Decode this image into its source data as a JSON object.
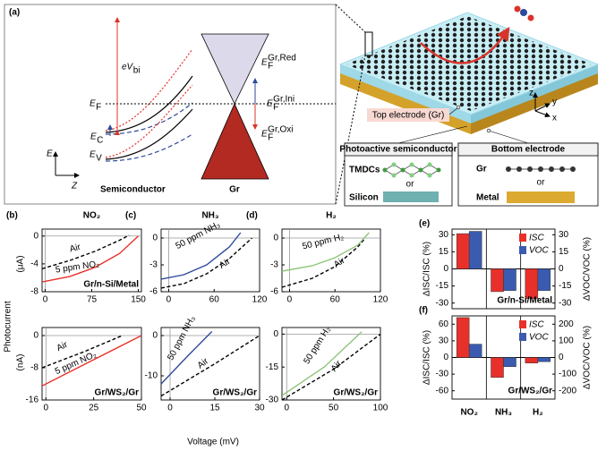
{
  "diagram": {
    "label": "(a)",
    "ev_bi": {
      "base": "eV",
      "sub": "bi"
    },
    "ec": {
      "base": "E",
      "sub": "C"
    },
    "ef": {
      "base": "E",
      "sub": "F"
    },
    "ev": {
      "base": "E",
      "sub": "V"
    },
    "e_axis": "E",
    "z_axis": "Z",
    "semiconductor": "Semiconductor",
    "gr": "Gr",
    "ef_red": {
      "base": "E",
      "sub": "F",
      "sup": "Gr,Red"
    },
    "ef_ini": {
      "base": "E",
      "sub": "F",
      "sup": "Gr,Ini"
    },
    "ef_oxi": {
      "base": "E",
      "sub": "F",
      "sup": "Gr,Oxi"
    },
    "top_electrode": "Top electrode (Gr)",
    "photoactive": {
      "title": "Photoactive semiconductor",
      "tmdcs": "TMDCs",
      "or": "or",
      "silicon": "Silicon"
    },
    "bottom": {
      "title": "Bottom electrode",
      "gr": "Gr",
      "or": "or",
      "metal": "Metal"
    },
    "axes3d": {
      "z": "z",
      "x": "x",
      "y": "y"
    }
  },
  "figure": {
    "ylabel": "Photocurrent",
    "xlabel": "Voltage (mV)",
    "units": [
      "(μA)",
      "(nA)"
    ]
  },
  "chart_data": [
    {
      "type": "line",
      "panel": "(b)",
      "title": "NO₂",
      "title_color": "#e8302a",
      "xlim": [
        -5,
        155
      ],
      "ylim": [
        -8,
        1
      ],
      "xticks": [
        0,
        75,
        150
      ],
      "yticks": [
        -8,
        -4,
        0
      ],
      "device": "Gr/n-Si/Metal",
      "series": [
        {
          "name": "Air",
          "color": "#000000",
          "dash": true,
          "x": [
            -5,
            40,
            80,
            120,
            135
          ],
          "values": [
            -4.7,
            -3.5,
            -2.2,
            -0.6,
            0.1
          ]
        },
        {
          "name": "5 ppm NO₂",
          "color": "#e8302a",
          "dash": false,
          "x": [
            -5,
            40,
            80,
            120,
            150
          ],
          "values": [
            -6.6,
            -5.8,
            -4.5,
            -2.5,
            0
          ]
        }
      ]
    },
    {
      "type": "line",
      "panel": "(c)",
      "title": "NH₃",
      "title_color": "#2e4a9a",
      "xlim": [
        -10,
        120
      ],
      "ylim": [
        -6,
        1
      ],
      "xticks": [
        0,
        60,
        120
      ],
      "yticks": [
        -6,
        -3,
        0
      ],
      "device": "",
      "series": [
        {
          "name": "Air",
          "color": "#000000",
          "dash": true,
          "x": [
            -10,
            20,
            50,
            80,
            110
          ],
          "values": [
            -5.6,
            -5.1,
            -4,
            -2.3,
            0
          ]
        },
        {
          "name": "50 ppm NH₃",
          "color": "#2e4a9a",
          "dash": false,
          "x": [
            -10,
            20,
            50,
            80,
            95
          ],
          "values": [
            -4.6,
            -4.1,
            -3,
            -1,
            0.6
          ]
        }
      ]
    },
    {
      "type": "line",
      "panel": "(d)",
      "title": "H₂",
      "title_color": "#8dc47a",
      "xlim": [
        -10,
        120
      ],
      "ylim": [
        -6,
        1
      ],
      "xticks": [
        0,
        60,
        120
      ],
      "yticks": [
        -6,
        -3,
        0
      ],
      "device": "",
      "series": [
        {
          "name": "Air",
          "color": "#000000",
          "dash": true,
          "x": [
            -10,
            30,
            60,
            90,
            100
          ],
          "values": [
            -5.5,
            -4.5,
            -3.2,
            -1,
            0
          ]
        },
        {
          "name": "50 ppm H₂",
          "color": "#8dc47a",
          "dash": false,
          "x": [
            -10,
            30,
            60,
            90,
            105
          ],
          "values": [
            -3.7,
            -3.1,
            -2.2,
            -0.8,
            0.6
          ]
        }
      ]
    },
    {
      "type": "line",
      "xlim": [
        -2,
        50
      ],
      "ylim": [
        -16,
        2
      ],
      "xticks": [
        0,
        25,
        50
      ],
      "yticks": [
        -16,
        -8,
        0
      ],
      "device": "Gr/WS₂/Gr",
      "series": [
        {
          "name": "Air",
          "color": "#000000",
          "dash": true,
          "x": [
            -2,
            20,
            40
          ],
          "values": [
            -8,
            -4,
            0
          ]
        },
        {
          "name": "5 ppm NO₂",
          "color": "#e8302a",
          "dash": false,
          "x": [
            -2,
            25,
            50
          ],
          "values": [
            -12.5,
            -6,
            0
          ]
        }
      ]
    },
    {
      "type": "line",
      "xlim": [
        -3,
        30
      ],
      "ylim": [
        -16,
        2
      ],
      "xticks": [
        0,
        15,
        30
      ],
      "yticks": [
        -10,
        0
      ],
      "device": "Gr/WS₂/Gr",
      "series": [
        {
          "name": "Air",
          "color": "#000000",
          "dash": true,
          "x": [
            -3,
            15,
            30
          ],
          "values": [
            -15,
            -7,
            0
          ]
        },
        {
          "name": "50 ppm NH₃",
          "color": "#2e4a9a",
          "dash": false,
          "x": [
            -3,
            6,
            14
          ],
          "values": [
            -12,
            -5,
            1
          ]
        }
      ]
    },
    {
      "type": "line",
      "xlim": [
        -5,
        100
      ],
      "ylim": [
        -30,
        3
      ],
      "xticks": [
        0,
        50,
        100
      ],
      "yticks": [
        -30,
        -15,
        0
      ],
      "device": "Gr/WS₂/Gr",
      "series": [
        {
          "name": "Air",
          "color": "#000000",
          "dash": true,
          "x": [
            -5,
            50,
            100
          ],
          "values": [
            -30,
            -16,
            0
          ]
        },
        {
          "name": "50 ppm H₂",
          "color": "#8dc47a",
          "dash": false,
          "x": [
            -5,
            40,
            80
          ],
          "values": [
            -28,
            -15,
            1
          ]
        }
      ]
    },
    {
      "type": "bar",
      "panel": "(e)",
      "ylabel": "ΔISC/ISC (%)",
      "y2label": "ΔVOC/VOC (%)",
      "ylim": [
        -35,
        35
      ],
      "yticks": [
        -30,
        -15,
        0,
        15,
        30
      ],
      "y2lim": [
        -35,
        35
      ],
      "y2ticks": [
        -30,
        -15,
        0,
        15,
        30
      ],
      "device": "Gr/n-Si/Metal",
      "series": [
        {
          "name": "ISC",
          "color": "#e8302a",
          "values": [
            31,
            -20,
            -26
          ]
        },
        {
          "name": "VOC",
          "color": "#3a5bb0",
          "axis": "y2",
          "values": [
            33,
            -19,
            -19
          ]
        }
      ]
    },
    {
      "type": "bar",
      "panel": "(f)",
      "ylabel": "ΔISC/ISC (%)",
      "y2label": "ΔVOC/VOC (%)",
      "ylim": [
        -75,
        75
      ],
      "yticks": [
        -60,
        -30,
        0,
        30,
        60
      ],
      "y2lim": [
        -250,
        250
      ],
      "y2ticks": [
        -200,
        -100,
        0,
        100,
        200
      ],
      "device": "Gr/WS₂/Gr",
      "categories": [
        "NO₂",
        "NH₃",
        "H₂"
      ],
      "category_colors": [
        "#e8302a",
        "#2e4a9a",
        "#8dc47a"
      ],
      "series": [
        {
          "name": "ISC",
          "color": "#e8302a",
          "values": [
            72,
            -36,
            -10
          ]
        },
        {
          "name": "VOC",
          "color": "#3a5bb0",
          "axis": "y2",
          "values": [
            80,
            -55,
            -25
          ]
        }
      ]
    }
  ]
}
